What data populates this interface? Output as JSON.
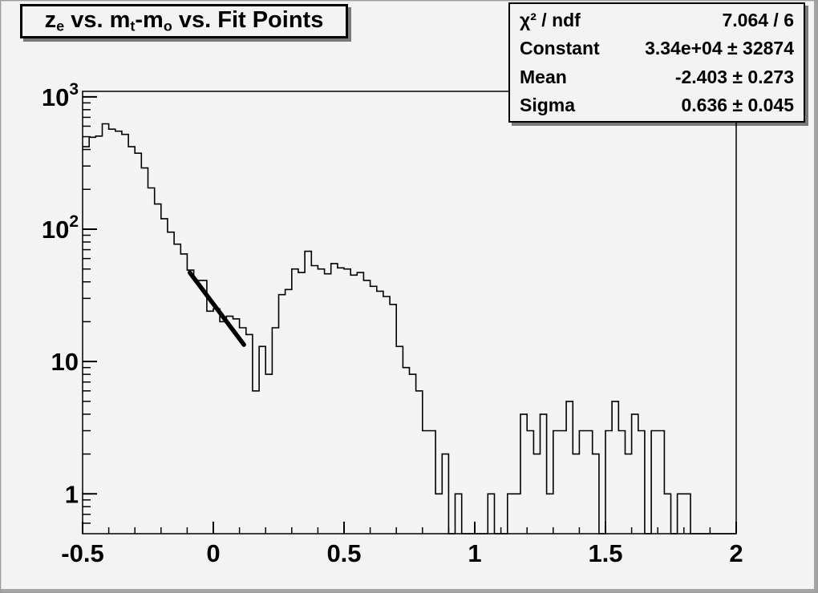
{
  "window": {
    "bg_color": "#f3f3f3",
    "bevel_dark": "#a4a4a4",
    "line_color": "#000000"
  },
  "title_box": {
    "plain_text": "ze vs. mt-mo vs. Fit Points",
    "segments": [
      {
        "t": "z"
      },
      {
        "t": "e",
        "sub": true
      },
      {
        "t": " vs. m"
      },
      {
        "t": "t",
        "sub": true
      },
      {
        "t": "-m"
      },
      {
        "t": "o",
        "sub": true
      },
      {
        "t": " vs. Fit Points"
      }
    ]
  },
  "stats_box": {
    "rows": [
      {
        "label": "χ² / ndf",
        "value": "7.064 / 6"
      },
      {
        "label": "Constant",
        "value": "3.34e+04 ± 32874"
      },
      {
        "label": "Mean",
        "value": "-2.403 ± 0.273"
      },
      {
        "label": "Sigma",
        "value": "0.636 ± 0.045"
      }
    ]
  },
  "chart_data": {
    "type": "bar",
    "subtype": "step-histogram",
    "title": "ze vs. mt-mo vs. Fit Points",
    "xlabel": "",
    "ylabel": "",
    "grid": false,
    "legend_position": "none",
    "ylog": true,
    "xlim": [
      -0.5,
      2.0
    ],
    "ylim": [
      0.5,
      1100
    ],
    "x_start": -0.5,
    "bin_width": 0.025,
    "values": [
      420,
      495,
      505,
      625,
      570,
      550,
      520,
      420,
      375,
      290,
      205,
      155,
      120,
      95,
      77,
      65,
      49,
      41,
      41,
      24,
      25,
      20,
      22,
      21,
      18,
      16,
      6,
      13,
      8,
      18,
      32,
      35,
      50,
      47,
      68,
      53,
      50,
      46,
      55,
      51,
      50,
      45,
      47,
      41,
      37,
      34,
      31,
      27,
      13,
      9,
      8,
      6,
      3,
      3,
      1,
      2,
      0,
      1,
      0,
      0,
      0,
      0,
      1,
      0,
      0,
      1,
      1,
      4,
      3,
      2,
      4,
      1,
      3,
      3,
      5,
      2,
      3,
      3,
      2,
      0,
      3,
      5,
      3,
      2,
      4,
      3,
      0,
      3,
      3,
      1,
      0,
      1,
      1,
      0,
      0,
      0,
      0,
      0,
      0,
      0
    ],
    "x_major_ticks": [
      -0.5,
      0,
      0.5,
      1,
      1.5,
      2
    ],
    "x_tick_labels": [
      "-0.5",
      "0",
      "0.5",
      "1",
      "1.5",
      "2"
    ],
    "x_minor_step": 0.1,
    "y_major_ticks": [
      1,
      10,
      100,
      1000
    ],
    "y_tick_labels": [
      {
        "v": 1,
        "base": "1",
        "exp": ""
      },
      {
        "v": 10,
        "base": "10",
        "exp": ""
      },
      {
        "v": 100,
        "base": "10",
        "exp": "2"
      },
      {
        "v": 1000,
        "base": "10",
        "exp": "3"
      }
    ],
    "fit_line": {
      "x1": -0.09,
      "y1": 47,
      "x2": 0.117,
      "y2": 13.4
    },
    "colors": {
      "histogram": "#000000",
      "fit": "#000000",
      "frame_bg": "#f4f4f4",
      "text": "#000000"
    }
  }
}
